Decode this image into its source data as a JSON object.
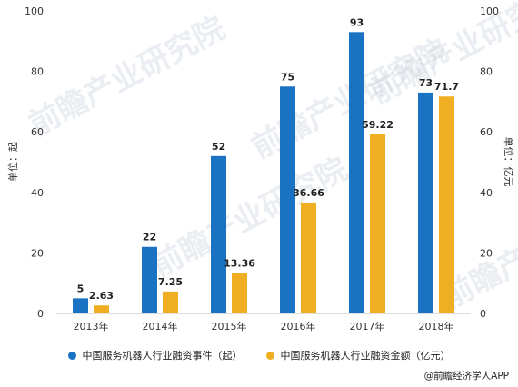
{
  "colors": {
    "series1": "#1a73c2",
    "series2": "#f0ae22",
    "axis": "#bbbbbb",
    "text": "#333333"
  },
  "source": "@前瞻经济学人APP",
  "watermark": "前瞻产业研究院",
  "chart_data": {
    "type": "bar",
    "categories": [
      "2013年",
      "2014年",
      "2015年",
      "2016年",
      "2017年",
      "2018年"
    ],
    "series": [
      {
        "name": "中国服务机器人行业融资事件（起）",
        "values": [
          5,
          22,
          52,
          75,
          93,
          73
        ],
        "labels": [
          "5",
          "22",
          "52",
          "75",
          "93",
          "73"
        ],
        "axis": "left"
      },
      {
        "name": "中国服务机器人行业融资金额（亿元）",
        "values": [
          2.63,
          7.25,
          13.36,
          36.66,
          59.22,
          71.7
        ],
        "labels": [
          "2.63",
          "7.25",
          "13.36",
          "36.66",
          "59.22",
          "71.7"
        ],
        "axis": "right"
      }
    ],
    "ylabel_left": "单位：起",
    "ylabel_right": "单位：亿元",
    "ylim_left": [
      0,
      100
    ],
    "ylim_right": [
      0,
      100
    ],
    "yticks_left": [
      "0",
      "20",
      "40",
      "60",
      "80",
      "100"
    ],
    "yticks_right": [
      "0",
      "20",
      "40",
      "60",
      "80",
      "100"
    ],
    "grid": false,
    "legend": "bottom"
  }
}
